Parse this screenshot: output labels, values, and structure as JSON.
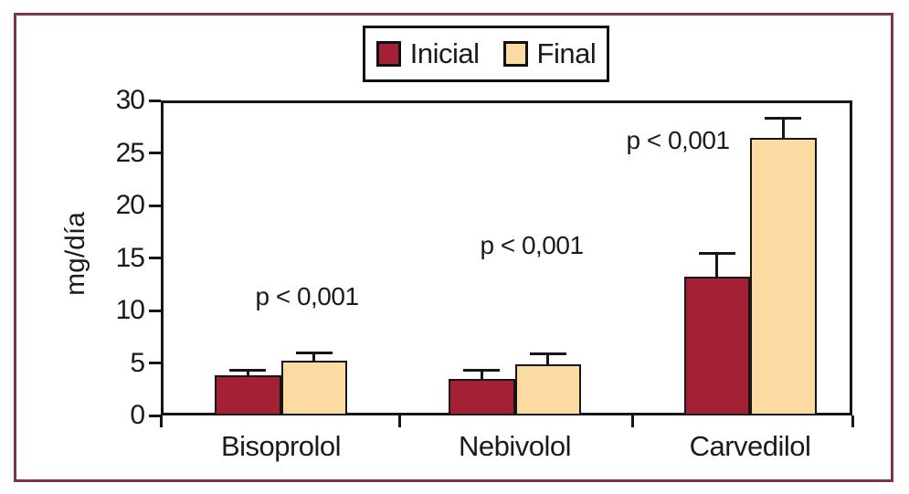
{
  "figure": {
    "background_color": "#ffffff",
    "border_color": "#7d3348"
  },
  "legend": {
    "items": [
      {
        "label": "Inicial",
        "color": "#a32035"
      },
      {
        "label": "Final",
        "color": "#fbdba2"
      }
    ]
  },
  "chart_data": {
    "type": "bar",
    "title": "",
    "xlabel": "",
    "ylabel": "mg/día",
    "ylim": [
      0,
      30
    ],
    "yticks": [
      "0",
      "5",
      "10",
      "15",
      "20",
      "25",
      "30"
    ],
    "ytick_values": [
      0,
      5,
      10,
      15,
      20,
      25,
      30
    ],
    "grid": false,
    "legend_position": "top-center",
    "categories": [
      "Bisoprolol",
      "Nebivolol",
      "Carvedilol"
    ],
    "series": [
      {
        "name": "Inicial",
        "color": "#a32035",
        "values": [
          3.8,
          3.5,
          13.2
        ],
        "errors_plus": [
          0.5,
          0.8,
          2.2
        ]
      },
      {
        "name": "Final",
        "color": "#fbdba2",
        "values": [
          5.2,
          4.9,
          26.4
        ],
        "errors_plus": [
          0.8,
          1.0,
          1.9
        ]
      }
    ],
    "annotations": [
      {
        "text": "p < 0,001",
        "category": "Bisoprolol"
      },
      {
        "text": "p < 0,001",
        "category": "Nebivolol"
      },
      {
        "text": "p < 0,001",
        "category": "Carvedilol"
      }
    ],
    "error_bar_style": "upper-cap-only",
    "axis_color": "#161616"
  }
}
